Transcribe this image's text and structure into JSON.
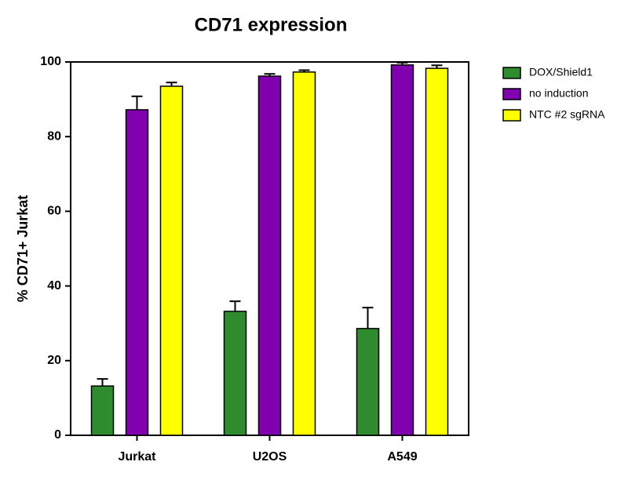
{
  "chart_data": {
    "type": "bar",
    "title": "CD71 expression",
    "y_label": "% CD71+ Jurkat",
    "categories": [
      "Jurkat",
      "U2OS",
      "A549"
    ],
    "series": [
      {
        "name": "DOX/Shield1",
        "color": "#2e8b2e",
        "values": [
          13.2,
          33.2,
          28.6
        ],
        "errors": [
          1.9,
          2.7,
          5.6
        ]
      },
      {
        "name": "no induction",
        "color": "#8000b0",
        "values": [
          87.2,
          96.2,
          99.2
        ],
        "errors": [
          3.6,
          0.6,
          0.6
        ]
      },
      {
        "name": "NTC #2 sgRNA",
        "color": "#ffff00",
        "values": [
          93.5,
          97.3,
          98.3
        ],
        "errors": [
          1.0,
          0.5,
          0.8
        ]
      }
    ],
    "ylim": [
      0,
      100
    ],
    "yticks": [
      0,
      20,
      40,
      60,
      80,
      100
    ],
    "legend": "right"
  }
}
